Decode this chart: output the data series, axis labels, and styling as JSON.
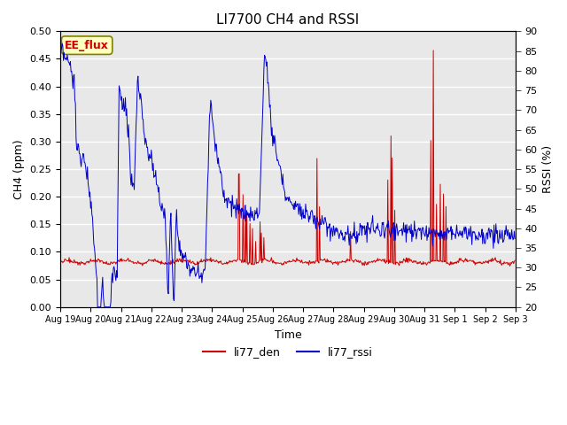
{
  "title": "LI7700 CH4 and RSSI",
  "xlabel": "Time",
  "ylabel_left": "CH4 (ppm)",
  "ylabel_right": "RSSI (%)",
  "ylim_left": [
    0.0,
    0.5
  ],
  "ylim_right": [
    20,
    90
  ],
  "yticks_left": [
    0.0,
    0.05,
    0.1,
    0.15,
    0.2,
    0.25,
    0.3,
    0.35,
    0.4,
    0.45,
    0.5
  ],
  "yticks_right": [
    20,
    25,
    30,
    35,
    40,
    45,
    50,
    55,
    60,
    65,
    70,
    75,
    80,
    85,
    90
  ],
  "color_ch4": "#cc0000",
  "color_rssi": "#0000cc",
  "bg_color": "#e8e8e8",
  "fig_bg": "#ffffff",
  "annotation_text": "EE_flux",
  "legend_labels": [
    "li77_den",
    "li77_rssi"
  ],
  "xtick_labels": [
    "Aug 19",
    "Aug 20",
    "Aug 21",
    "Aug 22",
    "Aug 23",
    "Aug 24",
    "Aug 25",
    "Aug 26",
    "Aug 27",
    "Aug 28",
    "Aug 29",
    "Aug 30",
    "Aug 31",
    "Sep 1",
    "Sep 2",
    "Sep 3"
  ]
}
